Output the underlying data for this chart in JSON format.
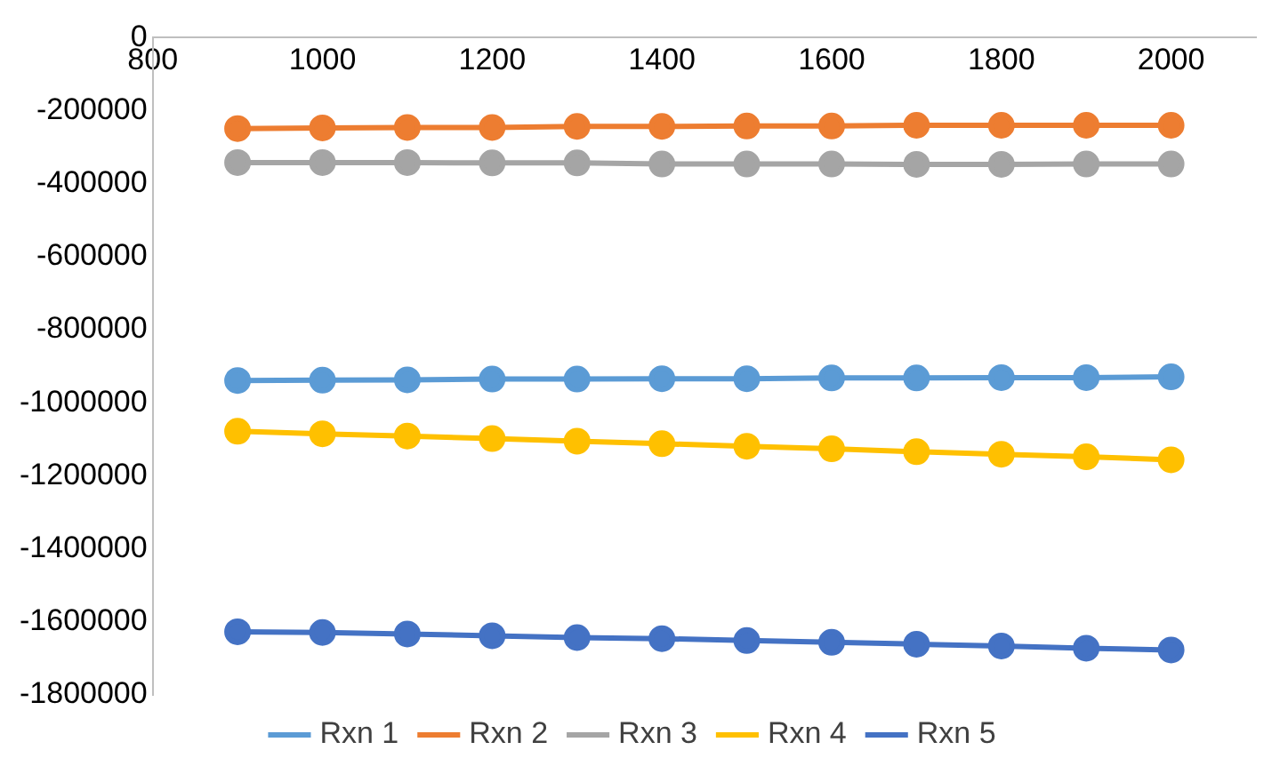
{
  "chart_data": {
    "type": "line",
    "x": [
      900,
      1000,
      1100,
      1200,
      1300,
      1400,
      1500,
      1600,
      1700,
      1800,
      1900,
      2000
    ],
    "xlim": [
      800,
      2100
    ],
    "xticks": [
      800,
      1000,
      1200,
      1400,
      1600,
      1800,
      2000
    ],
    "ylim": [
      -1800000,
      0
    ],
    "yticks": [
      0,
      -200000,
      -400000,
      -600000,
      -800000,
      -1000000,
      -1200000,
      -1400000,
      -1600000,
      -1800000
    ],
    "grid": false,
    "legend": "bottom",
    "marker": "circle",
    "line_style": "solid",
    "series": [
      {
        "name": "Rxn 1",
        "color": "#5b9bd5",
        "values": [
          -939000,
          -938000,
          -937000,
          -935000,
          -935000,
          -934000,
          -934000,
          -932000,
          -932000,
          -931000,
          -931000,
          -929000
        ]
      },
      {
        "name": "Rxn 2",
        "color": "#ed7d31",
        "values": [
          -249000,
          -247000,
          -246000,
          -246000,
          -243000,
          -243000,
          -242000,
          -242000,
          -240000,
          -240000,
          -240000,
          -240000
        ]
      },
      {
        "name": "Rxn 3",
        "color": "#a5a5a5",
        "values": [
          -342000,
          -342000,
          -342000,
          -343000,
          -343000,
          -346000,
          -346000,
          -346000,
          -347000,
          -347000,
          -346000,
          -346000
        ]
      },
      {
        "name": "Rxn 4",
        "color": "#ffc000",
        "values": [
          -1078000,
          -1085000,
          -1091000,
          -1098000,
          -1105000,
          -1112000,
          -1119000,
          -1126000,
          -1134000,
          -1141000,
          -1148000,
          -1156000
        ]
      },
      {
        "name": "Rxn 5",
        "color": "#4472c4",
        "values": [
          -1627000,
          -1629000,
          -1633000,
          -1638000,
          -1643000,
          -1646000,
          -1651000,
          -1656000,
          -1661000,
          -1666000,
          -1672000,
          -1677000
        ]
      }
    ]
  }
}
